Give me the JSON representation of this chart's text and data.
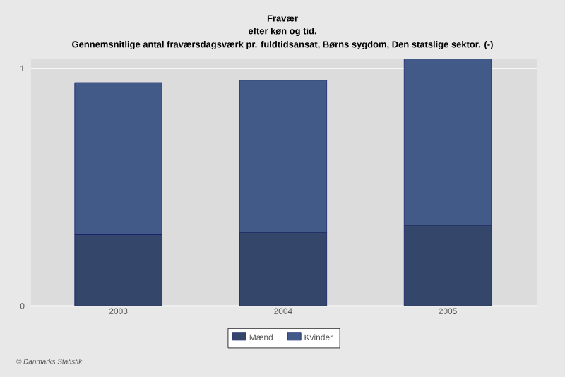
{
  "chart_data": {
    "type": "bar",
    "title": "Fravær",
    "subtitle": "efter køn og tid.",
    "ylabel": "Gennemsnitlige antal fraværsdagsværk pr. fuldtidsansat, Børns sygdom, Den statslige sektor. (-)",
    "categories": [
      "2003",
      "2004",
      "2005"
    ],
    "series": [
      {
        "name": "Mænd",
        "color": "#34466a",
        "values": [
          0.3,
          0.31,
          0.34
        ]
      },
      {
        "name": "Kvinder",
        "color": "#415a88",
        "values": [
          0.64,
          0.64,
          0.7
        ]
      }
    ],
    "stacked": true,
    "ylim": [
      0,
      1.04
    ],
    "yticks": [
      0,
      1
    ],
    "grid": "y",
    "legend": "bottom",
    "annotations": [
      "© Danmarks Statistik"
    ]
  }
}
